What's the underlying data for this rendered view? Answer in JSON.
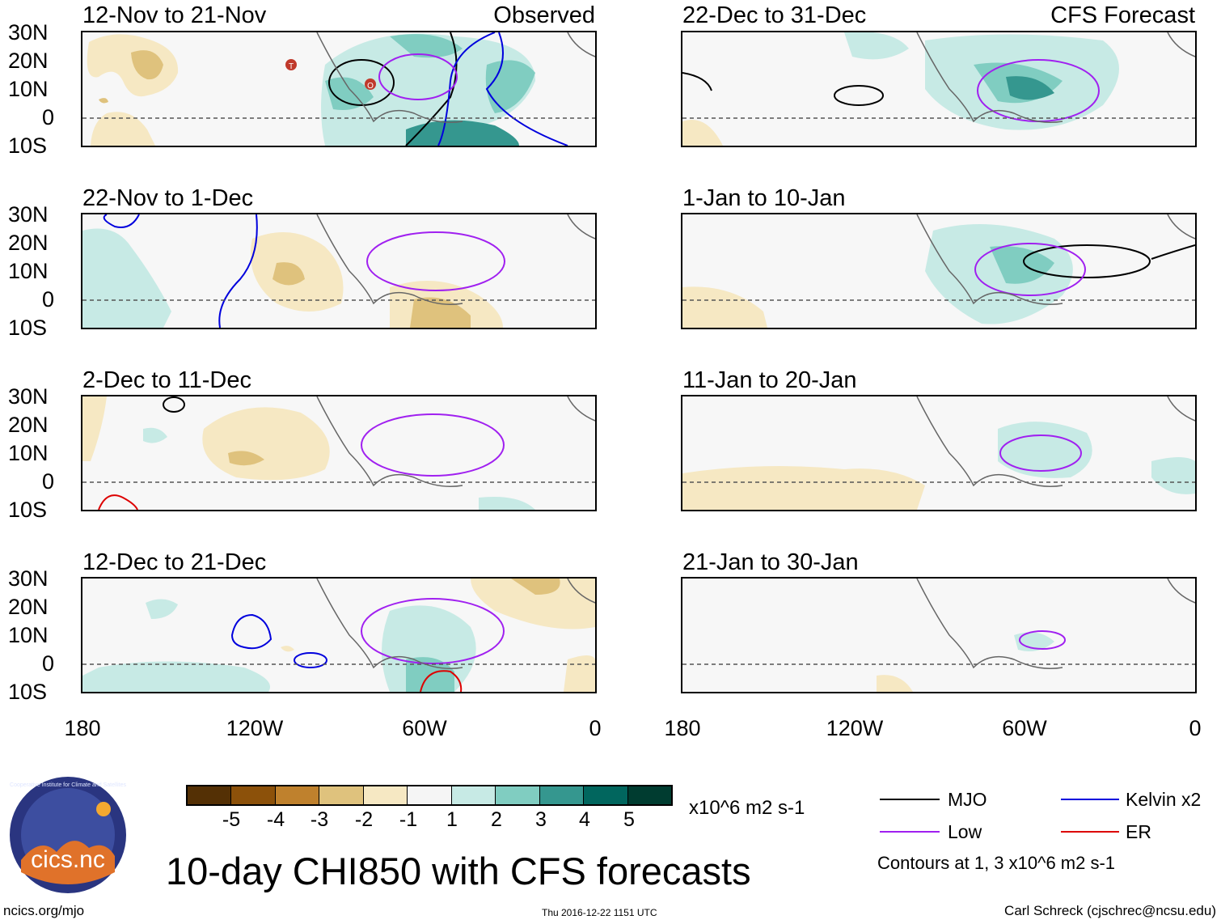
{
  "figure_title": "10-day CHI850 with CFS forecasts",
  "units_label": "x10^6 m2 s-1",
  "site_url": "ncics.org/mjo",
  "timestamp": "Thu 2016-12-22 1151 UTC",
  "author": "Carl Schreck (cjschrec@ncsu.edu)",
  "logo_text": "cics.nc",
  "logo_ring_text": "Cooperative Institute for Climate and Satellites",
  "lat_ticks": [
    "30N",
    "20N",
    "10N",
    "0",
    "10S"
  ],
  "lon_ticks": [
    "180",
    "120W",
    "60W",
    "0"
  ],
  "panels": [
    {
      "title": "12-Nov to 21-Nov",
      "tag": "Observed",
      "storms": [
        "T",
        "O"
      ]
    },
    {
      "title": "22-Dec to 31-Dec",
      "tag": "CFS Forecast"
    },
    {
      "title": "22-Nov to 1-Dec"
    },
    {
      "title": "1-Jan to 10-Jan"
    },
    {
      "title": "2-Dec to 11-Dec"
    },
    {
      "title": "11-Jan to 20-Jan"
    },
    {
      "title": "12-Dec to 21-Dec"
    },
    {
      "title": "21-Jan to 30-Jan"
    }
  ],
  "colorbar": {
    "labels": [
      "-5",
      "-4",
      "-3",
      "-2",
      "-1",
      "1",
      "2",
      "3",
      "4",
      "5"
    ],
    "colors": [
      "#543005",
      "#8c510a",
      "#bf812d",
      "#dfc27d",
      "#f6e8c3",
      "#f5f5f5",
      "#c7eae5",
      "#80cdc1",
      "#35978f",
      "#01665e",
      "#003c30"
    ]
  },
  "legend": {
    "items": [
      {
        "label": "MJO",
        "color": "#000000"
      },
      {
        "label": "Kelvin x2",
        "color": "#0000dd"
      },
      {
        "label": "Low",
        "color": "#a020f0"
      },
      {
        "label": "ER",
        "color": "#dd0000"
      }
    ],
    "note": "Contours at 1, 3 x10^6 m2 s-1"
  }
}
